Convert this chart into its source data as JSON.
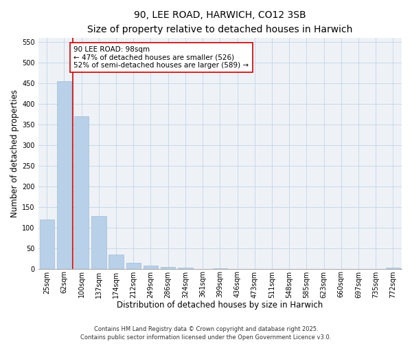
{
  "title_line1": "90, LEE ROAD, HARWICH, CO12 3SB",
  "title_line2": "Size of property relative to detached houses in Harwich",
  "xlabel": "Distribution of detached houses by size in Harwich",
  "ylabel": "Number of detached properties",
  "categories": [
    "25sqm",
    "62sqm",
    "100sqm",
    "137sqm",
    "174sqm",
    "212sqm",
    "249sqm",
    "286sqm",
    "324sqm",
    "361sqm",
    "399sqm",
    "436sqm",
    "473sqm",
    "511sqm",
    "548sqm",
    "585sqm",
    "623sqm",
    "660sqm",
    "697sqm",
    "735sqm",
    "772sqm"
  ],
  "values": [
    120,
    455,
    370,
    127,
    35,
    14,
    8,
    5,
    3,
    0,
    1,
    0,
    0,
    0,
    0,
    0,
    0,
    0,
    0,
    0,
    2
  ],
  "bar_color": "#b8d0e8",
  "bar_edge_color": "#a0bcd4",
  "grid_color": "#c8d8e8",
  "bg_color": "#eef2f7",
  "vline_x_index": 1.5,
  "vline_color": "#cc0000",
  "annotation_text": "90 LEE ROAD: 98sqm\n← 47% of detached houses are smaller (526)\n52% of semi-detached houses are larger (589) →",
  "annotation_box_color": "#cc0000",
  "ylim": [
    0,
    560
  ],
  "yticks": [
    0,
    50,
    100,
    150,
    200,
    250,
    300,
    350,
    400,
    450,
    500,
    550
  ],
  "footer_text": "Contains HM Land Registry data © Crown copyright and database right 2025.\nContains public sector information licensed under the Open Government Licence v3.0.",
  "title_fontsize": 10,
  "subtitle_fontsize": 9,
  "axis_label_fontsize": 8.5,
  "tick_fontsize": 7,
  "annotation_fontsize": 7.5,
  "footer_fontsize": 6
}
